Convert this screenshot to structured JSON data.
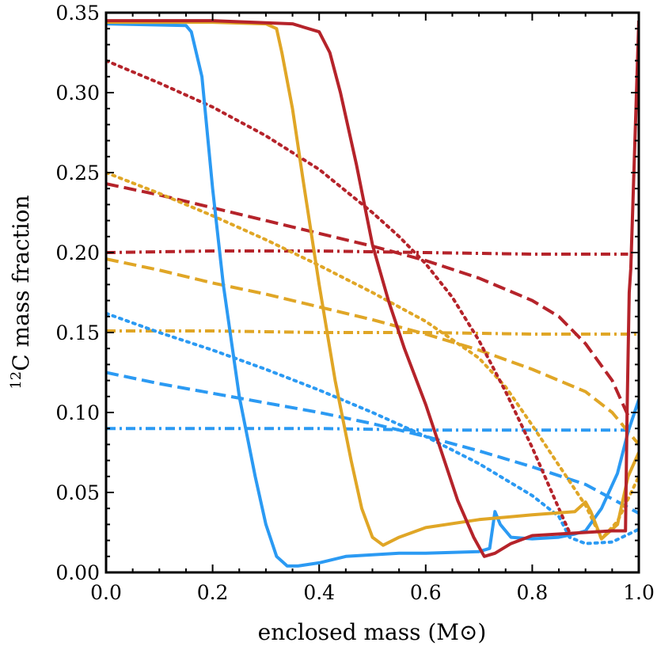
{
  "chart_data": {
    "type": "line",
    "xlabel": "enclosed mass (M⊙)",
    "ylabel_sup": "12",
    "ylabel_main": "C mass fraction",
    "xlim": [
      0.0,
      1.0
    ],
    "ylim": [
      0.0,
      0.35
    ],
    "xticks": [
      0.0,
      0.2,
      0.4,
      0.6,
      0.8,
      1.0
    ],
    "xtick_labels": [
      "0.0",
      "0.2",
      "0.4",
      "0.6",
      "0.8",
      "1.0"
    ],
    "yticks": [
      0.0,
      0.05,
      0.1,
      0.15,
      0.2,
      0.25,
      0.3,
      0.35
    ],
    "ytick_labels": [
      "0.00",
      "0.05",
      "0.10",
      "0.15",
      "0.20",
      "0.25",
      "0.30",
      "0.35"
    ],
    "grid": false,
    "colors": {
      "blue": "#2b9af3",
      "gold": "#e0a626",
      "red": "#b5232a"
    },
    "series": [
      {
        "color": "#2b9af3",
        "style": "dashdot",
        "x": [
          0.0,
          0.2,
          0.4,
          0.6,
          0.8,
          0.98
        ],
        "y": [
          0.09,
          0.09,
          0.09,
          0.089,
          0.089,
          0.089
        ]
      },
      {
        "color": "#e0a626",
        "style": "dashdot",
        "x": [
          0.0,
          0.2,
          0.4,
          0.6,
          0.8,
          1.0
        ],
        "y": [
          0.151,
          0.151,
          0.15,
          0.15,
          0.149,
          0.149
        ]
      },
      {
        "color": "#b5232a",
        "style": "dashdot",
        "x": [
          0.0,
          0.2,
          0.4,
          0.6,
          0.8,
          0.98
        ],
        "y": [
          0.2,
          0.201,
          0.201,
          0.2,
          0.199,
          0.199
        ]
      },
      {
        "color": "#2b9af3",
        "style": "dashed",
        "x": [
          0.0,
          0.1,
          0.2,
          0.3,
          0.4,
          0.5,
          0.6,
          0.7,
          0.8,
          0.9,
          0.95,
          1.0
        ],
        "y": [
          0.125,
          0.118,
          0.112,
          0.106,
          0.1,
          0.093,
          0.085,
          0.076,
          0.066,
          0.055,
          0.046,
          0.037
        ]
      },
      {
        "color": "#e0a626",
        "style": "dashed",
        "x": [
          0.0,
          0.1,
          0.2,
          0.3,
          0.4,
          0.5,
          0.6,
          0.7,
          0.8,
          0.9,
          0.95,
          1.0
        ],
        "y": [
          0.196,
          0.189,
          0.181,
          0.174,
          0.166,
          0.158,
          0.149,
          0.139,
          0.127,
          0.113,
          0.1,
          0.08
        ]
      },
      {
        "color": "#b5232a",
        "style": "dashed",
        "x": [
          0.0,
          0.1,
          0.2,
          0.3,
          0.4,
          0.5,
          0.6,
          0.7,
          0.8,
          0.85,
          0.9,
          0.95,
          0.98
        ],
        "y": [
          0.243,
          0.236,
          0.228,
          0.22,
          0.212,
          0.204,
          0.195,
          0.184,
          0.17,
          0.16,
          0.143,
          0.12,
          0.098
        ]
      },
      {
        "color": "#2b9af3",
        "style": "dotted",
        "x": [
          0.0,
          0.1,
          0.2,
          0.3,
          0.4,
          0.5,
          0.6,
          0.7,
          0.8,
          0.85,
          0.87,
          0.9,
          0.95,
          1.0
        ],
        "y": [
          0.162,
          0.15,
          0.139,
          0.127,
          0.114,
          0.1,
          0.085,
          0.068,
          0.048,
          0.035,
          0.022,
          0.018,
          0.019,
          0.027
        ]
      },
      {
        "color": "#e0a626",
        "style": "dotted",
        "x": [
          0.0,
          0.1,
          0.2,
          0.3,
          0.4,
          0.5,
          0.6,
          0.7,
          0.75,
          0.8,
          0.85,
          0.9,
          0.93,
          0.96,
          1.0
        ],
        "y": [
          0.25,
          0.237,
          0.223,
          0.208,
          0.192,
          0.175,
          0.157,
          0.134,
          0.116,
          0.092,
          0.067,
          0.042,
          0.021,
          0.032,
          0.06
        ]
      },
      {
        "color": "#b5232a",
        "style": "dotted",
        "x": [
          0.0,
          0.1,
          0.2,
          0.3,
          0.4,
          0.5,
          0.55,
          0.6,
          0.65,
          0.7,
          0.75,
          0.8,
          0.85,
          0.87
        ],
        "y": [
          0.32,
          0.306,
          0.291,
          0.273,
          0.252,
          0.225,
          0.21,
          0.193,
          0.172,
          0.145,
          0.113,
          0.078,
          0.04,
          0.025
        ]
      },
      {
        "color": "#2b9af3",
        "style": "solid",
        "x": [
          0.0,
          0.15,
          0.16,
          0.18,
          0.2,
          0.22,
          0.25,
          0.28,
          0.3,
          0.32,
          0.34,
          0.36,
          0.4,
          0.45,
          0.5,
          0.55,
          0.6,
          0.7,
          0.72,
          0.73,
          0.74,
          0.76,
          0.8,
          0.85,
          0.88,
          0.9,
          0.93,
          0.96,
          0.98,
          1.0
        ],
        "y": [
          0.343,
          0.342,
          0.338,
          0.31,
          0.24,
          0.18,
          0.11,
          0.06,
          0.03,
          0.01,
          0.004,
          0.004,
          0.006,
          0.01,
          0.011,
          0.012,
          0.012,
          0.013,
          0.015,
          0.038,
          0.03,
          0.022,
          0.021,
          0.022,
          0.024,
          0.026,
          0.04,
          0.062,
          0.088,
          0.108
        ]
      },
      {
        "color": "#e0a626",
        "style": "solid",
        "x": [
          0.0,
          0.2,
          0.3,
          0.32,
          0.33,
          0.35,
          0.37,
          0.4,
          0.43,
          0.46,
          0.48,
          0.5,
          0.52,
          0.55,
          0.6,
          0.7,
          0.8,
          0.88,
          0.9,
          0.91,
          0.93,
          0.96,
          0.98,
          1.0
        ],
        "y": [
          0.344,
          0.344,
          0.343,
          0.34,
          0.325,
          0.29,
          0.245,
          0.18,
          0.12,
          0.07,
          0.04,
          0.022,
          0.017,
          0.022,
          0.028,
          0.033,
          0.036,
          0.038,
          0.044,
          0.038,
          0.021,
          0.03,
          0.06,
          0.075
        ]
      },
      {
        "color": "#b5232a",
        "style": "solid",
        "x": [
          0.0,
          0.2,
          0.35,
          0.4,
          0.42,
          0.44,
          0.47,
          0.5,
          0.53,
          0.56,
          0.6,
          0.63,
          0.66,
          0.69,
          0.71,
          0.73,
          0.76,
          0.8,
          0.85,
          0.9,
          0.95,
          0.975,
          0.978,
          0.982,
          0.985,
          1.0
        ],
        "y": [
          0.345,
          0.345,
          0.343,
          0.338,
          0.325,
          0.3,
          0.255,
          0.205,
          0.17,
          0.14,
          0.105,
          0.075,
          0.045,
          0.022,
          0.01,
          0.012,
          0.018,
          0.023,
          0.024,
          0.025,
          0.026,
          0.026,
          0.1,
          0.175,
          0.19,
          0.345
        ]
      }
    ]
  }
}
